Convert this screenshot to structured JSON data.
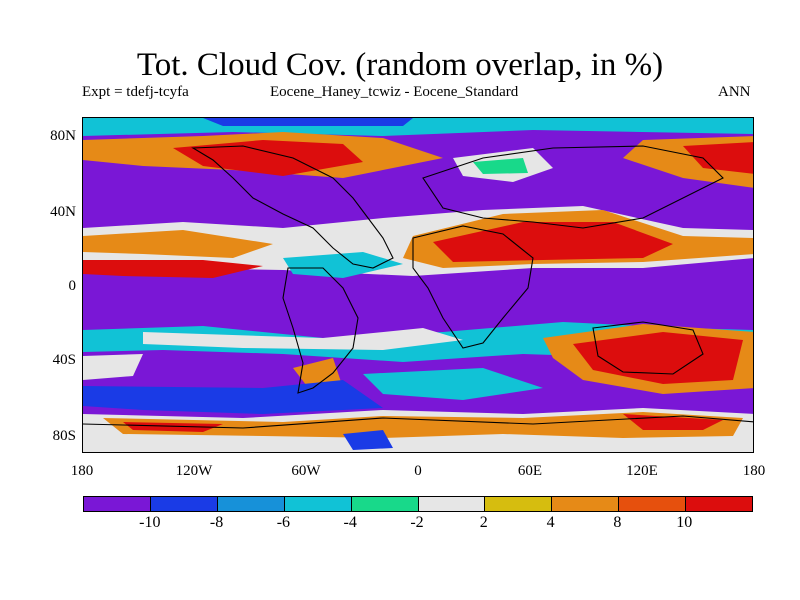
{
  "title": "Tot. Cloud Cov. (random overlap, in %)",
  "subtitle_left": "Expt = tdefj-tcyfa",
  "subtitle_center": "Eocene_Haney_tcwiz - Eocene_Standard",
  "subtitle_right": "ANN",
  "y_ticks": [
    "80N",
    "40N",
    "0",
    "40S",
    "80S"
  ],
  "x_ticks": [
    "180",
    "120W",
    "60W",
    "0",
    "60E",
    "120E",
    "180"
  ],
  "colorbar": {
    "colors": [
      "#7a17d6",
      "#1a3be6",
      "#1791d9",
      "#11c2d6",
      "#18d98a",
      "#e6e6e6",
      "#d6bd0f",
      "#e68a17",
      "#e6500d",
      "#dc0d0d"
    ],
    "labels": [
      "-10",
      "-8",
      "-6",
      "-4",
      "-2",
      "2",
      "4",
      "8",
      "10"
    ]
  }
}
